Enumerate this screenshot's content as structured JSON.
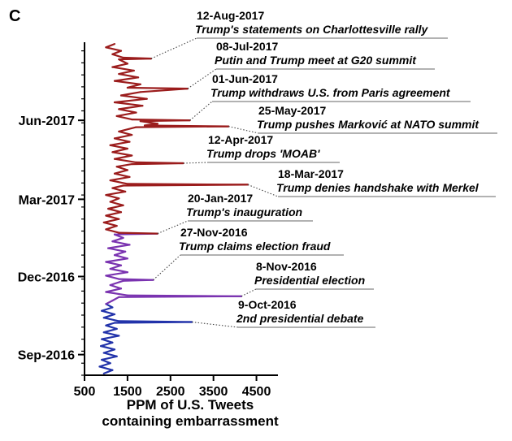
{
  "panel_label": "C",
  "chart_data": {
    "type": "line",
    "orientation": "vertical-time",
    "xlabel": [
      "PPM of U.S. Tweets",
      "containing embarrassment"
    ],
    "xlim": [
      500,
      5000
    ],
    "xticks": [
      500,
      1500,
      2500,
      3500,
      4500
    ],
    "xtick_labels": [
      "500",
      "1500",
      "2500",
      "3500",
      "4500"
    ],
    "yticks": [
      {
        "label": "Jun-2017"
      },
      {
        "label": "Mar-2017"
      },
      {
        "label": "Dec-2016"
      },
      {
        "label": "Sep-2016"
      }
    ],
    "time_axis": {
      "start": "2016-08-08",
      "end": "2017-08-31",
      "labeled_dates": [
        "2017-06-01",
        "2017-03-01",
        "2016-12-01",
        "2016-09-01"
      ]
    },
    "series_colors": {
      "pre_election": "#2233aa",
      "transition": "#7a33b0",
      "presidency": "#9b1c1c"
    },
    "segments_end": {
      "pre_election": "2016-11-01",
      "transition": "2017-01-20"
    },
    "series": [
      {
        "date": "2016-08-10",
        "value": 950
      },
      {
        "date": "2016-08-14",
        "value": 1150
      },
      {
        "date": "2016-08-18",
        "value": 850
      },
      {
        "date": "2016-08-22",
        "value": 1100
      },
      {
        "date": "2016-08-26",
        "value": 900
      },
      {
        "date": "2016-08-30",
        "value": 1250
      },
      {
        "date": "2016-09-03",
        "value": 950
      },
      {
        "date": "2016-09-07",
        "value": 1200
      },
      {
        "date": "2016-09-11",
        "value": 880
      },
      {
        "date": "2016-09-15",
        "value": 1150
      },
      {
        "date": "2016-09-19",
        "value": 900
      },
      {
        "date": "2016-09-23",
        "value": 1300
      },
      {
        "date": "2016-09-27",
        "value": 950
      },
      {
        "date": "2016-10-01",
        "value": 1250
      },
      {
        "date": "2016-10-05",
        "value": 1000
      },
      {
        "date": "2016-10-08",
        "value": 1200
      },
      {
        "date": "2016-10-09",
        "value": 3000
      },
      {
        "date": "2016-10-10",
        "value": 1300
      },
      {
        "date": "2016-10-14",
        "value": 950
      },
      {
        "date": "2016-10-18",
        "value": 1200
      },
      {
        "date": "2016-10-22",
        "value": 900
      },
      {
        "date": "2016-10-26",
        "value": 1150
      },
      {
        "date": "2016-10-30",
        "value": 1000
      },
      {
        "date": "2016-11-03",
        "value": 1150
      },
      {
        "date": "2016-11-07",
        "value": 1300
      },
      {
        "date": "2016-11-08",
        "value": 4150
      },
      {
        "date": "2016-11-09",
        "value": 1500
      },
      {
        "date": "2016-11-13",
        "value": 1000
      },
      {
        "date": "2016-11-17",
        "value": 1350
      },
      {
        "date": "2016-11-21",
        "value": 1100
      },
      {
        "date": "2016-11-26",
        "value": 1400
      },
      {
        "date": "2016-11-27",
        "value": 2100
      },
      {
        "date": "2016-11-28",
        "value": 1300
      },
      {
        "date": "2016-12-02",
        "value": 1000
      },
      {
        "date": "2016-12-06",
        "value": 1500
      },
      {
        "date": "2016-12-10",
        "value": 1100
      },
      {
        "date": "2016-12-14",
        "value": 1350
      },
      {
        "date": "2016-12-18",
        "value": 1000
      },
      {
        "date": "2016-12-22",
        "value": 1500
      },
      {
        "date": "2016-12-26",
        "value": 1200
      },
      {
        "date": "2016-12-30",
        "value": 1450
      },
      {
        "date": "2017-01-03",
        "value": 1050
      },
      {
        "date": "2017-01-07",
        "value": 1550
      },
      {
        "date": "2017-01-11",
        "value": 1150
      },
      {
        "date": "2017-01-15",
        "value": 1400
      },
      {
        "date": "2017-01-19",
        "value": 1200
      },
      {
        "date": "2017-01-20",
        "value": 2200
      },
      {
        "date": "2017-01-21",
        "value": 1300
      },
      {
        "date": "2017-01-25",
        "value": 1000
      },
      {
        "date": "2017-01-29",
        "value": 1250
      },
      {
        "date": "2017-02-02",
        "value": 950
      },
      {
        "date": "2017-02-06",
        "value": 1300
      },
      {
        "date": "2017-02-10",
        "value": 1000
      },
      {
        "date": "2017-02-14",
        "value": 1350
      },
      {
        "date": "2017-02-18",
        "value": 1050
      },
      {
        "date": "2017-02-22",
        "value": 1400
      },
      {
        "date": "2017-02-26",
        "value": 1100
      },
      {
        "date": "2017-03-02",
        "value": 1300
      },
      {
        "date": "2017-03-06",
        "value": 1000
      },
      {
        "date": "2017-03-10",
        "value": 1450
      },
      {
        "date": "2017-03-14",
        "value": 1150
      },
      {
        "date": "2017-03-17",
        "value": 1400
      },
      {
        "date": "2017-03-18",
        "value": 4300
      },
      {
        "date": "2017-03-19",
        "value": 1500
      },
      {
        "date": "2017-03-23",
        "value": 1100
      },
      {
        "date": "2017-03-27",
        "value": 1550
      },
      {
        "date": "2017-03-31",
        "value": 1200
      },
      {
        "date": "2017-04-04",
        "value": 1500
      },
      {
        "date": "2017-04-08",
        "value": 1250
      },
      {
        "date": "2017-04-11",
        "value": 1600
      },
      {
        "date": "2017-04-12",
        "value": 2800
      },
      {
        "date": "2017-04-13",
        "value": 1700
      },
      {
        "date": "2017-04-17",
        "value": 1200
      },
      {
        "date": "2017-04-21",
        "value": 1600
      },
      {
        "date": "2017-04-25",
        "value": 1150
      },
      {
        "date": "2017-04-29",
        "value": 1500
      },
      {
        "date": "2017-05-03",
        "value": 1100
      },
      {
        "date": "2017-05-07",
        "value": 1550
      },
      {
        "date": "2017-05-11",
        "value": 1200
      },
      {
        "date": "2017-05-15",
        "value": 1600
      },
      {
        "date": "2017-05-19",
        "value": 1300
      },
      {
        "date": "2017-05-24",
        "value": 1700
      },
      {
        "date": "2017-05-25",
        "value": 3850
      },
      {
        "date": "2017-05-26",
        "value": 1900
      },
      {
        "date": "2017-05-28",
        "value": 2200
      },
      {
        "date": "2017-05-31",
        "value": 1800
      },
      {
        "date": "2017-06-01",
        "value": 2950
      },
      {
        "date": "2017-06-02",
        "value": 1600
      },
      {
        "date": "2017-06-06",
        "value": 1250
      },
      {
        "date": "2017-06-10",
        "value": 1700
      },
      {
        "date": "2017-06-14",
        "value": 1300
      },
      {
        "date": "2017-06-18",
        "value": 1850
      },
      {
        "date": "2017-06-22",
        "value": 1200
      },
      {
        "date": "2017-06-26",
        "value": 1950
      },
      {
        "date": "2017-06-30",
        "value": 1350
      },
      {
        "date": "2017-07-04",
        "value": 1800
      },
      {
        "date": "2017-07-08",
        "value": 2900
      },
      {
        "date": "2017-07-09",
        "value": 1500
      },
      {
        "date": "2017-07-13",
        "value": 1800
      },
      {
        "date": "2017-07-17",
        "value": 1200
      },
      {
        "date": "2017-07-21",
        "value": 1750
      },
      {
        "date": "2017-07-25",
        "value": 1300
      },
      {
        "date": "2017-07-29",
        "value": 1650
      },
      {
        "date": "2017-08-02",
        "value": 1150
      },
      {
        "date": "2017-08-06",
        "value": 1500
      },
      {
        "date": "2017-08-11",
        "value": 1300
      },
      {
        "date": "2017-08-12",
        "value": 2050
      },
      {
        "date": "2017-08-13",
        "value": 1400
      },
      {
        "date": "2017-08-17",
        "value": 1150
      },
      {
        "date": "2017-08-21",
        "value": 1350
      },
      {
        "date": "2017-08-25",
        "value": 1000
      },
      {
        "date": "2017-08-29",
        "value": 1200
      }
    ],
    "annotations": [
      {
        "date_label": "12-Aug-2017",
        "text": "Trump's statements on Charlottesville rally",
        "date": "2017-08-12",
        "value": 2050
      },
      {
        "date_label": "08-Jul-2017",
        "text": "Putin and Trump meet at G20 summit",
        "date": "2017-07-08",
        "value": 2900
      },
      {
        "date_label": "01-Jun-2017",
        "text": "Trump withdraws U.S. from Paris agreement",
        "date": "2017-06-01",
        "value": 2950
      },
      {
        "date_label": "25-May-2017",
        "text": "Trump pushes Marković at NATO summit",
        "date": "2017-05-25",
        "value": 3850
      },
      {
        "date_label": "12-Apr-2017",
        "text": "Trump drops 'MOAB'",
        "date": "2017-04-12",
        "value": 2800
      },
      {
        "date_label": "18-Mar-2017",
        "text": "Trump denies handshake with Merkel",
        "date": "2017-03-18",
        "value": 4300
      },
      {
        "date_label": "20-Jan-2017",
        "text": "Trump's inauguration",
        "date": "2017-01-20",
        "value": 2200
      },
      {
        "date_label": "27-Nov-2016",
        "text": "Trump claims election fraud",
        "date": "2016-11-27",
        "value": 2100
      },
      {
        "date_label": "8-Nov-2016",
        "text": "Presidential election",
        "date": "2016-11-08",
        "value": 4150
      },
      {
        "date_label": "9-Oct-2016",
        "text": "2nd presidential debate",
        "date": "2016-10-09",
        "value": 3000
      }
    ]
  }
}
